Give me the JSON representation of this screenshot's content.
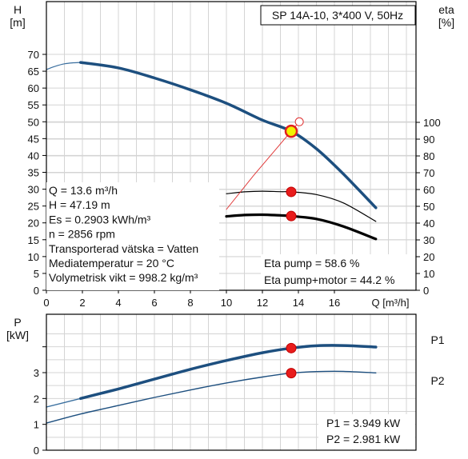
{
  "chart_data": [
    {
      "type": "line",
      "title": "SP 14A-10, 3*400 V, 50Hz",
      "xlabel": "Q [m³/h]",
      "ylabel": "H\n[m]",
      "ylabel_right": "eta\n[%]",
      "xlim": [
        0,
        20
      ],
      "ylim": [
        0,
        75
      ],
      "ylim_right": [
        0,
        100
      ],
      "x_ticks": [
        0,
        2,
        4,
        6,
        8,
        10,
        12,
        14,
        16
      ],
      "x_tick_labels": [
        "0",
        "2",
        "4",
        "6",
        "8",
        "10",
        "12",
        "14",
        "16"
      ],
      "y_ticks": [
        0,
        5,
        10,
        15,
        20,
        25,
        30,
        35,
        40,
        45,
        50,
        55,
        60,
        65,
        70
      ],
      "y_tick_labels": [
        "0",
        "5",
        "10",
        "15",
        "20",
        "25",
        "30",
        "35",
        "40",
        "45",
        "50",
        "55",
        "60",
        "65",
        "70"
      ],
      "y_ticks_right": [
        0,
        10,
        20,
        30,
        40,
        50,
        60,
        70,
        80,
        90,
        100
      ],
      "y_tick_labels_right": [
        "0",
        "10",
        "20",
        "30",
        "40",
        "50",
        "60",
        "70",
        "80",
        "90",
        "100"
      ],
      "grid": true,
      "series": [
        {
          "axis": "left",
          "style": "thin",
          "color": "#3a6f9f",
          "x": [
            0,
            0.5,
            1,
            1.5,
            1.9
          ],
          "values": [
            65.5,
            66.5,
            67.2,
            67.5,
            67.6
          ]
        },
        {
          "axis": "left",
          "style": "bold",
          "color": "#1d4f7f",
          "x": [
            1.9,
            4,
            6,
            8,
            10,
            12,
            13.6,
            15,
            16.5,
            18.3
          ],
          "values": [
            67.6,
            66,
            63,
            59.5,
            55.5,
            50.5,
            47.19,
            42,
            34.5,
            24.5
          ]
        },
        {
          "axis": "right",
          "style": "thin",
          "color": "#000000",
          "x": [
            10,
            11,
            12,
            13,
            13.6,
            15,
            16.5,
            18.3
          ],
          "values": [
            57.5,
            58.6,
            59,
            58.7,
            58.6,
            57,
            52,
            41
          ]
        },
        {
          "axis": "right",
          "style": "bold",
          "color": "#000000",
          "x": [
            10,
            11,
            12,
            13,
            13.6,
            15,
            16.5,
            18.3
          ],
          "values": [
            44,
            44.8,
            45,
            44.6,
            44.2,
            42.5,
            38,
            30.5
          ]
        },
        {
          "axis": "left",
          "style": "system",
          "color": "#e03030",
          "x": [
            10,
            11.5,
            13.6,
            14.05
          ],
          "values": [
            24,
            34,
            47.19,
            50
          ]
        }
      ],
      "duty_points": [
        {
          "x": 13.6,
          "y": 47.19,
          "axis": "left",
          "kind": "duty"
        },
        {
          "x": 13.6,
          "y": 58.6,
          "axis": "right",
          "kind": "marker"
        },
        {
          "x": 13.6,
          "y": 44.2,
          "axis": "right",
          "kind": "marker"
        }
      ],
      "open_point": {
        "x": 14.05,
        "y": 50,
        "axis": "left"
      },
      "info_lines": [
        "Q = 13.6 m³/h",
        "H = 47.19 m",
        "Es = 0.2903 kWh/m³",
        "n = 2856 rpm",
        "Transporterad vätska = Vatten",
        "Mediatemperatur = 20 °C",
        "Volymetrisk vikt = 998.2 kg/m³"
      ],
      "eta_lines": [
        "Eta pump = 58.6 %",
        "Eta pump+motor = 44.2 %"
      ]
    },
    {
      "type": "line",
      "ylabel": "P\n[kW]",
      "xlim": [
        0,
        20
      ],
      "ylim": [
        0,
        4.5
      ],
      "y_ticks": [
        0,
        1,
        2,
        3
      ],
      "y_tick_labels": [
        "0",
        "1",
        "2",
        "3"
      ],
      "grid": true,
      "series": [
        {
          "name": "P1",
          "style": "thin",
          "color": "#3a6f9f",
          "x": [
            0,
            1.9
          ],
          "values": [
            1.67,
            2.0
          ]
        },
        {
          "name": "P1",
          "style": "bold",
          "color": "#1d4f7f",
          "x": [
            1.9,
            4,
            6,
            8,
            10,
            12,
            13.6,
            15,
            16.5,
            18.3
          ],
          "values": [
            2.0,
            2.37,
            2.75,
            3.13,
            3.47,
            3.77,
            3.949,
            4.04,
            4.05,
            3.99
          ]
        },
        {
          "name": "P2",
          "style": "thin",
          "color": "#1d4f7f",
          "x": [
            0,
            1.9,
            4,
            6,
            8,
            10,
            12,
            13.6,
            15,
            16.5,
            18.3
          ],
          "values": [
            1.05,
            1.4,
            1.73,
            2.04,
            2.33,
            2.6,
            2.83,
            2.981,
            3.04,
            3.05,
            2.99
          ]
        }
      ],
      "duty_points": [
        {
          "x": 13.6,
          "y": 3.949,
          "kind": "marker"
        },
        {
          "x": 13.6,
          "y": 2.981,
          "kind": "marker"
        }
      ],
      "legend": [
        "P1",
        "P2"
      ],
      "legend_placement": "right",
      "readout_lines": [
        "P1 = 3.949 kW",
        "P2 = 2.981 kW"
      ]
    }
  ]
}
